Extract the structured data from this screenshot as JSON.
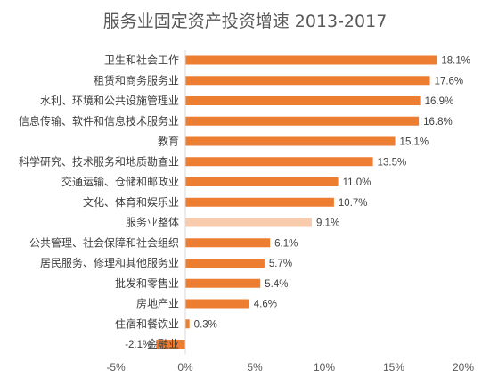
{
  "chart_data": {
    "type": "bar",
    "orientation": "horizontal",
    "title": "服务业固定资产投资增速 2013-2017",
    "categories": [
      "卫生和社会工作",
      "租赁和商务服务业",
      "水利、环境和公共设施管理业",
      "信息传输、软件和信息技术服务业",
      "教育",
      "科学研究、技术服务和地质勘查业",
      "交通运输、仓储和邮政业",
      "文化、体育和娱乐业",
      "服务业整体",
      "公共管理、社会保障和社会组织",
      "居民服务、修理和其他服务业",
      "批发和零售业",
      "房地产业",
      "住宿和餐饮业",
      "金融业"
    ],
    "values": [
      18.1,
      17.6,
      16.9,
      16.8,
      15.1,
      13.5,
      11.0,
      10.7,
      9.1,
      6.1,
      5.7,
      5.4,
      4.6,
      0.3,
      -2.1
    ],
    "value_labels": [
      "18.1%",
      "17.6%",
      "16.9%",
      "16.8%",
      "15.1%",
      "13.5%",
      "11.0%",
      "10.7%",
      "9.1%",
      "6.1%",
      "5.7%",
      "5.4%",
      "4.6%",
      "0.3%",
      "-2.1%"
    ],
    "highlight_category": "服务业整体",
    "xlim": [
      -5,
      20
    ],
    "xticks": [
      -5,
      0,
      5,
      10,
      15,
      20
    ],
    "xtick_labels": [
      "-5%",
      "0%",
      "5%",
      "10%",
      "15%",
      "20%"
    ],
    "xlabel": "",
    "ylabel": "",
    "grid": false,
    "legend": "none",
    "colors": {
      "bar": "#ED7D31",
      "highlight": "#F8CBAD",
      "axis": "#D9D9D9"
    }
  }
}
